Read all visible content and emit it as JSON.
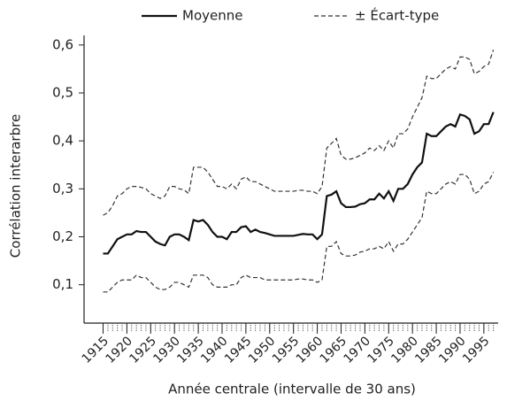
{
  "chart_data": {
    "type": "line",
    "legend": "top",
    "x_label": "Année centrale (intervalle de 30 ans)",
    "y_label": "Corrélation interarbre",
    "x": [
      1915,
      1916,
      1917,
      1918,
      1919,
      1920,
      1921,
      1922,
      1923,
      1924,
      1925,
      1926,
      1927,
      1928,
      1929,
      1930,
      1931,
      1932,
      1933,
      1934,
      1935,
      1936,
      1937,
      1938,
      1939,
      1940,
      1941,
      1942,
      1943,
      1944,
      1945,
      1946,
      1947,
      1948,
      1949,
      1950,
      1951,
      1952,
      1953,
      1954,
      1955,
      1956,
      1957,
      1958,
      1959,
      1960,
      1961,
      1962,
      1963,
      1964,
      1965,
      1966,
      1967,
      1968,
      1969,
      1970,
      1971,
      1972,
      1973,
      1974,
      1975,
      1976,
      1977,
      1978,
      1979,
      1980,
      1981,
      1982,
      1983,
      1984,
      1985,
      1986,
      1987,
      1988,
      1989,
      1990,
      1991,
      1992,
      1993,
      1994,
      1995,
      1996,
      1997
    ],
    "series": [
      {
        "name": "Moyenne",
        "color": "#111111",
        "dashed": false,
        "values": [
          0.165,
          0.165,
          0.18,
          0.195,
          0.2,
          0.205,
          0.205,
          0.212,
          0.21,
          0.21,
          0.2,
          0.19,
          0.185,
          0.182,
          0.2,
          0.205,
          0.205,
          0.2,
          0.193,
          0.235,
          0.232,
          0.235,
          0.225,
          0.21,
          0.2,
          0.2,
          0.195,
          0.21,
          0.21,
          0.22,
          0.222,
          0.21,
          0.215,
          0.21,
          0.208,
          0.205,
          0.202,
          0.202,
          0.202,
          0.202,
          0.202,
          0.204,
          0.206,
          0.205,
          0.205,
          0.195,
          0.205,
          0.285,
          0.288,
          0.295,
          0.27,
          0.262,
          0.262,
          0.263,
          0.268,
          0.27,
          0.278,
          0.278,
          0.29,
          0.28,
          0.295,
          0.275,
          0.3,
          0.3,
          0.31,
          0.33,
          0.345,
          0.355,
          0.415,
          0.41,
          0.41,
          0.42,
          0.43,
          0.435,
          0.43,
          0.455,
          0.452,
          0.445,
          0.415,
          0.42,
          0.435,
          0.435,
          0.46
        ]
      },
      {
        "name": "± Écart-type",
        "color": "#333333",
        "dashed": true,
        "values": [
          0.245,
          0.25,
          0.265,
          0.285,
          0.29,
          0.3,
          0.305,
          0.305,
          0.303,
          0.3,
          0.29,
          0.285,
          0.28,
          0.285,
          0.305,
          0.305,
          0.3,
          0.298,
          0.29,
          0.345,
          0.345,
          0.345,
          0.335,
          0.32,
          0.305,
          0.305,
          0.3,
          0.31,
          0.3,
          0.32,
          0.325,
          0.315,
          0.315,
          0.31,
          0.305,
          0.3,
          0.295,
          0.295,
          0.295,
          0.295,
          0.295,
          0.297,
          0.297,
          0.295,
          0.295,
          0.29,
          0.305,
          0.385,
          0.395,
          0.405,
          0.37,
          0.362,
          0.362,
          0.365,
          0.37,
          0.375,
          0.385,
          0.38,
          0.39,
          0.38,
          0.4,
          0.385,
          0.415,
          0.415,
          0.425,
          0.45,
          0.47,
          0.49,
          0.535,
          0.53,
          0.53,
          0.54,
          0.55,
          0.555,
          0.55,
          0.575,
          0.575,
          0.57,
          0.54,
          0.545,
          0.555,
          0.56,
          0.59
        ]
      },
      {
        "name": "± Écart-type",
        "color": "#333333",
        "dashed": true,
        "values": [
          0.085,
          0.085,
          0.095,
          0.105,
          0.11,
          0.11,
          0.11,
          0.12,
          0.115,
          0.115,
          0.105,
          0.095,
          0.09,
          0.09,
          0.095,
          0.105,
          0.105,
          0.1,
          0.095,
          0.12,
          0.12,
          0.12,
          0.115,
          0.1,
          0.095,
          0.095,
          0.095,
          0.1,
          0.1,
          0.115,
          0.12,
          0.115,
          0.115,
          0.115,
          0.11,
          0.11,
          0.11,
          0.11,
          0.11,
          0.11,
          0.11,
          0.112,
          0.112,
          0.11,
          0.11,
          0.105,
          0.11,
          0.18,
          0.18,
          0.19,
          0.165,
          0.16,
          0.16,
          0.162,
          0.168,
          0.17,
          0.175,
          0.175,
          0.18,
          0.175,
          0.19,
          0.17,
          0.185,
          0.185,
          0.195,
          0.21,
          0.225,
          0.24,
          0.295,
          0.29,
          0.29,
          0.3,
          0.31,
          0.315,
          0.31,
          0.33,
          0.33,
          0.32,
          0.29,
          0.295,
          0.31,
          0.315,
          0.335
        ]
      }
    ],
    "xlim": [
      1911,
      1998
    ],
    "xticks": [
      1915,
      1920,
      1925,
      1930,
      1935,
      1940,
      1945,
      1950,
      1955,
      1960,
      1965,
      1970,
      1975,
      1980,
      1985,
      1990,
      1995
    ],
    "ylim": [
      0.02,
      0.62
    ],
    "yticks": [
      {
        "value": 0.1,
        "label": "0,1"
      },
      {
        "value": 0.2,
        "label": "0,2"
      },
      {
        "value": 0.3,
        "label": "0,3"
      },
      {
        "value": 0.4,
        "label": "0,4"
      },
      {
        "value": 0.5,
        "label": "0,5"
      },
      {
        "value": 0.6,
        "label": "0,6"
      }
    ]
  }
}
